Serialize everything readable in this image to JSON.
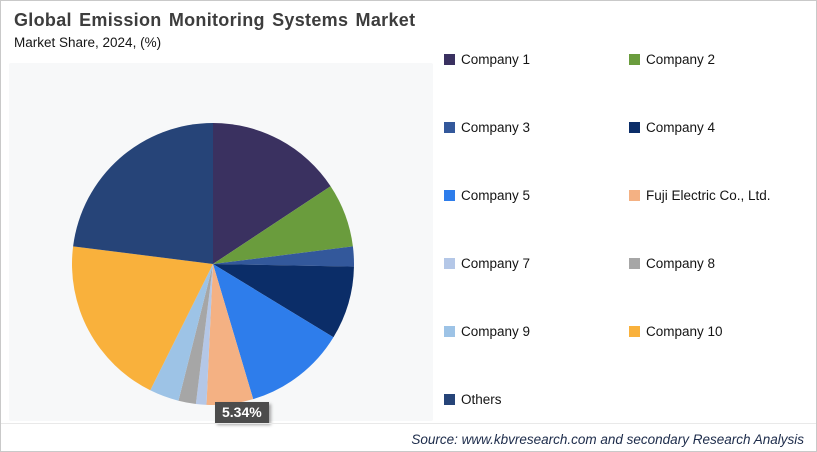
{
  "header": {
    "title": "Global Emission Monitoring Systems Market",
    "subtitle": "Market Share, 2024, (%)"
  },
  "footer": {
    "source": "Source: www.kbvresearch.com and secondary Research Analysis"
  },
  "chart_data": {
    "type": "pie",
    "title": "Global Emission Monitoring Systems Market",
    "subtitle": "Market Share, 2024, (%)",
    "unit": "%",
    "start_angle_deg": 0,
    "direction": "clockwise",
    "legend_position": "right",
    "grid": false,
    "segments": [
      {
        "label": "Company 1",
        "value": 15.7,
        "color": "#3a3160"
      },
      {
        "label": "Company 2",
        "value": 7.3,
        "color": "#6a9c3d"
      },
      {
        "label": "Company 3",
        "value": 2.3,
        "color": "#33589b"
      },
      {
        "label": "Company 4",
        "value": 8.4,
        "color": "#0b2d68"
      },
      {
        "label": "Company 5",
        "value": 11.7,
        "color": "#2e7deb"
      },
      {
        "label": "Fuji Electric Co., Ltd.",
        "value": 5.34,
        "color": "#f4b183"
      },
      {
        "label": "Company 7",
        "value": 1.2,
        "color": "#b4c7e7"
      },
      {
        "label": "Company 8",
        "value": 2.0,
        "color": "#a6a6a6"
      },
      {
        "label": "Company 9",
        "value": 3.4,
        "color": "#9dc3e6"
      },
      {
        "label": "Company 10",
        "value": 19.66,
        "color": "#f9b13c"
      },
      {
        "label": "Others",
        "value": 23.0,
        "color": "#264478"
      }
    ],
    "callout": {
      "segment": "Fuji Electric Co., Ltd.",
      "text": "5.34%"
    }
  }
}
